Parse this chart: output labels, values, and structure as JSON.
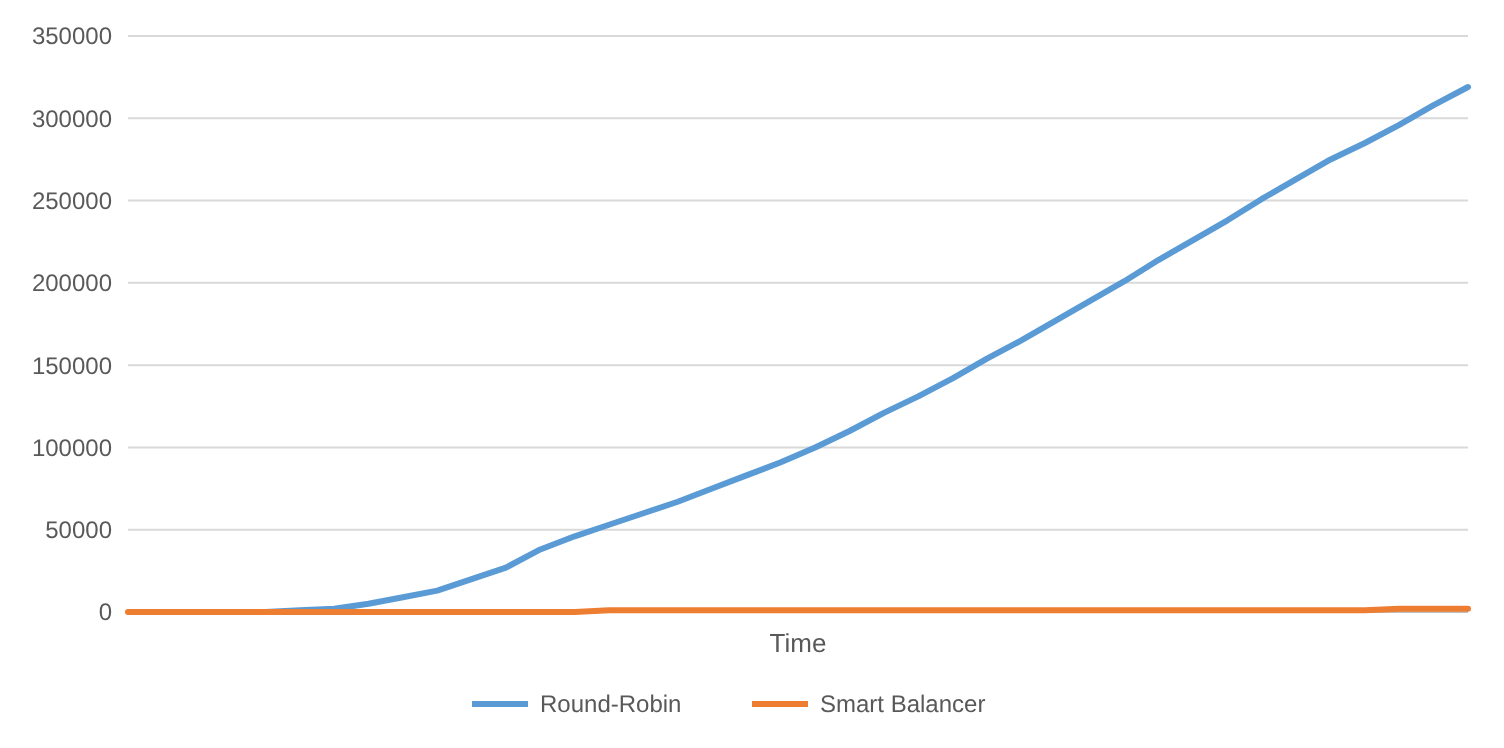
{
  "chart_data": {
    "type": "line",
    "xlabel": "Time",
    "categories": [
      null,
      null,
      null,
      null,
      null,
      null,
      null,
      null,
      null,
      null,
      null,
      null,
      null,
      null,
      null,
      null,
      null,
      null,
      null,
      null,
      null,
      null,
      null,
      null,
      null,
      null,
      null,
      null,
      null,
      null,
      null,
      null,
      null,
      null,
      null,
      null,
      null,
      null,
      null,
      null
    ],
    "series": [
      {
        "name": "Round-Robin",
        "color": "#5b9bd5",
        "values": [
          null,
          null,
          null,
          0,
          0,
          1000,
          2000,
          5000,
          9000,
          13000,
          20000,
          27000,
          38000,
          46000,
          53000,
          60000,
          67000,
          75000,
          83000,
          91000,
          100000,
          110000,
          121000,
          131000,
          142000,
          154000,
          165000,
          177000,
          189000,
          201000,
          214000,
          226000,
          238000,
          251000,
          263000,
          275000,
          285000,
          296000,
          308000,
          319000
        ]
      },
      {
        "name": "Smart Balancer",
        "color": "#ed7d31",
        "values": [
          0,
          0,
          0,
          0,
          0,
          0,
          0,
          0,
          0,
          0,
          0,
          0,
          0,
          0,
          1000,
          1000,
          1000,
          1000,
          1000,
          1000,
          1000,
          1000,
          1000,
          1000,
          1000,
          1000,
          1000,
          1000,
          1000,
          1000,
          1000,
          1000,
          1000,
          1000,
          1000,
          1000,
          1000,
          2000,
          2000,
          2000
        ]
      }
    ],
    "ylim": [
      0,
      350000
    ],
    "yticks": [
      0,
      50000,
      100000,
      150000,
      200000,
      250000,
      300000,
      350000
    ],
    "grid": "y",
    "legend": "bottom",
    "line_style": "solid",
    "marker": "none"
  }
}
